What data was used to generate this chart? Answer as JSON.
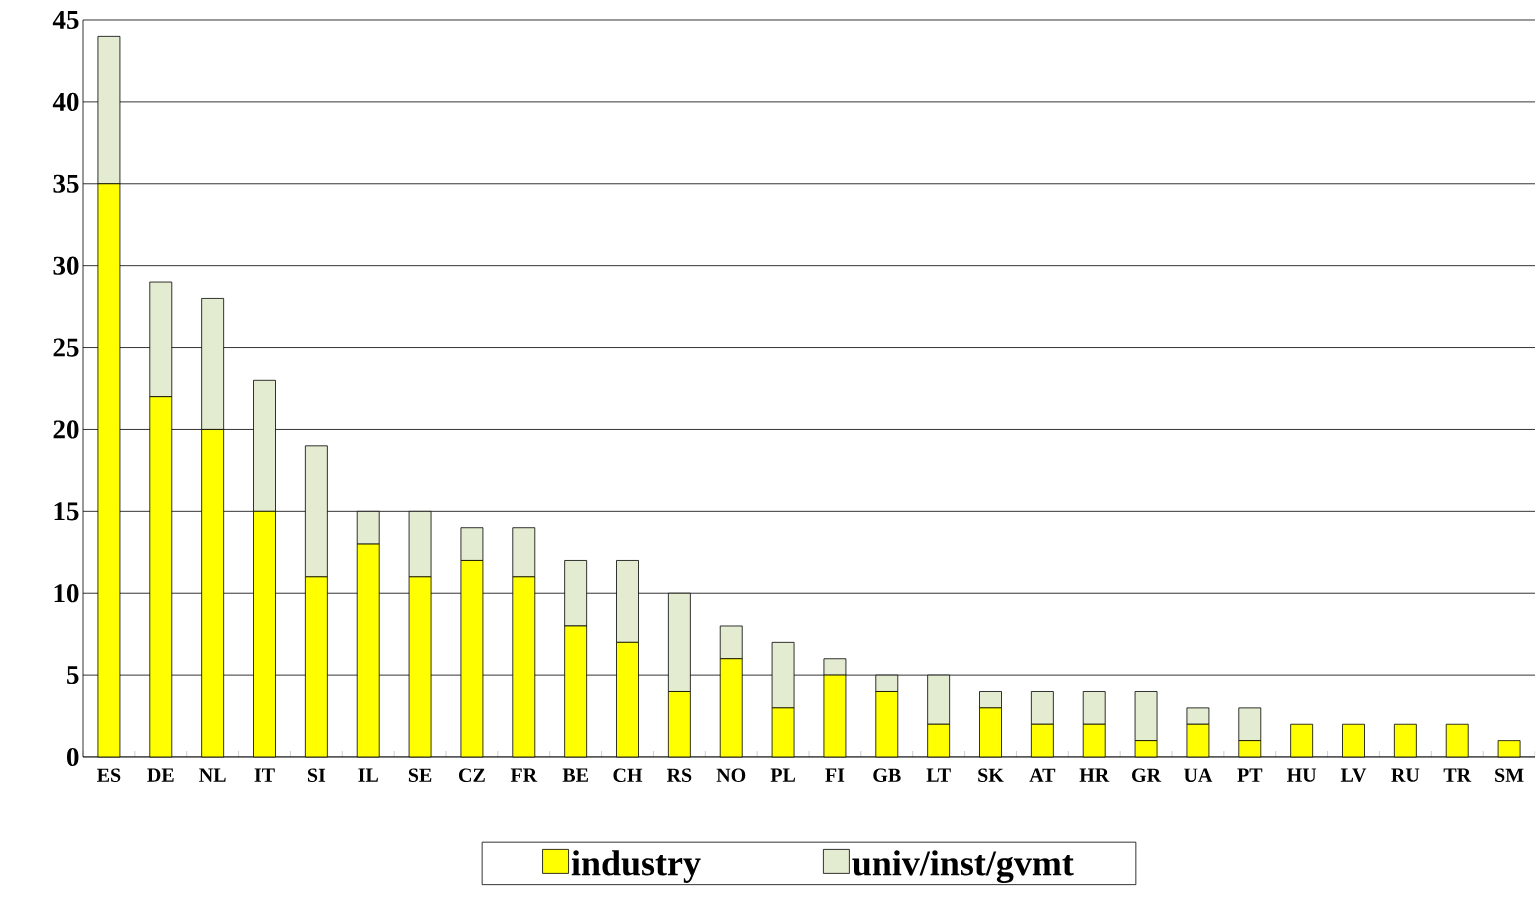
{
  "chart_data": {
    "type": "bar",
    "stacked": true,
    "categories": [
      "ES",
      "DE",
      "NL",
      "IT",
      "SI",
      "IL",
      "SE",
      "CZ",
      "FR",
      "BE",
      "CH",
      "RS",
      "NO",
      "PL",
      "FI",
      "GB",
      "LT",
      "SK",
      "AT",
      "HR",
      "GR",
      "UA",
      "PT",
      "HU",
      "LV",
      "RU",
      "TR",
      "SM"
    ],
    "series": [
      {
        "name": "industry",
        "color": "#ffff00",
        "values": [
          35,
          22,
          20,
          15,
          11,
          13,
          11,
          12,
          11,
          8,
          7,
          4,
          6,
          3,
          5,
          4,
          2,
          3,
          2,
          2,
          1,
          2,
          1,
          2,
          2,
          2,
          2,
          1
        ]
      },
      {
        "name": "univ/inst/gvmt",
        "color": "#e3ebd0",
        "values": [
          9,
          7,
          8,
          8,
          8,
          2,
          4,
          2,
          3,
          4,
          5,
          6,
          2,
          4,
          1,
          1,
          3,
          1,
          2,
          2,
          3,
          1,
          2,
          0,
          0,
          0,
          0,
          0
        ]
      }
    ],
    "ylim": [
      0,
      45
    ],
    "yticks": [
      0,
      5,
      10,
      15,
      20,
      25,
      30,
      35,
      40,
      45
    ],
    "grid": "y",
    "legend": "bottom"
  }
}
